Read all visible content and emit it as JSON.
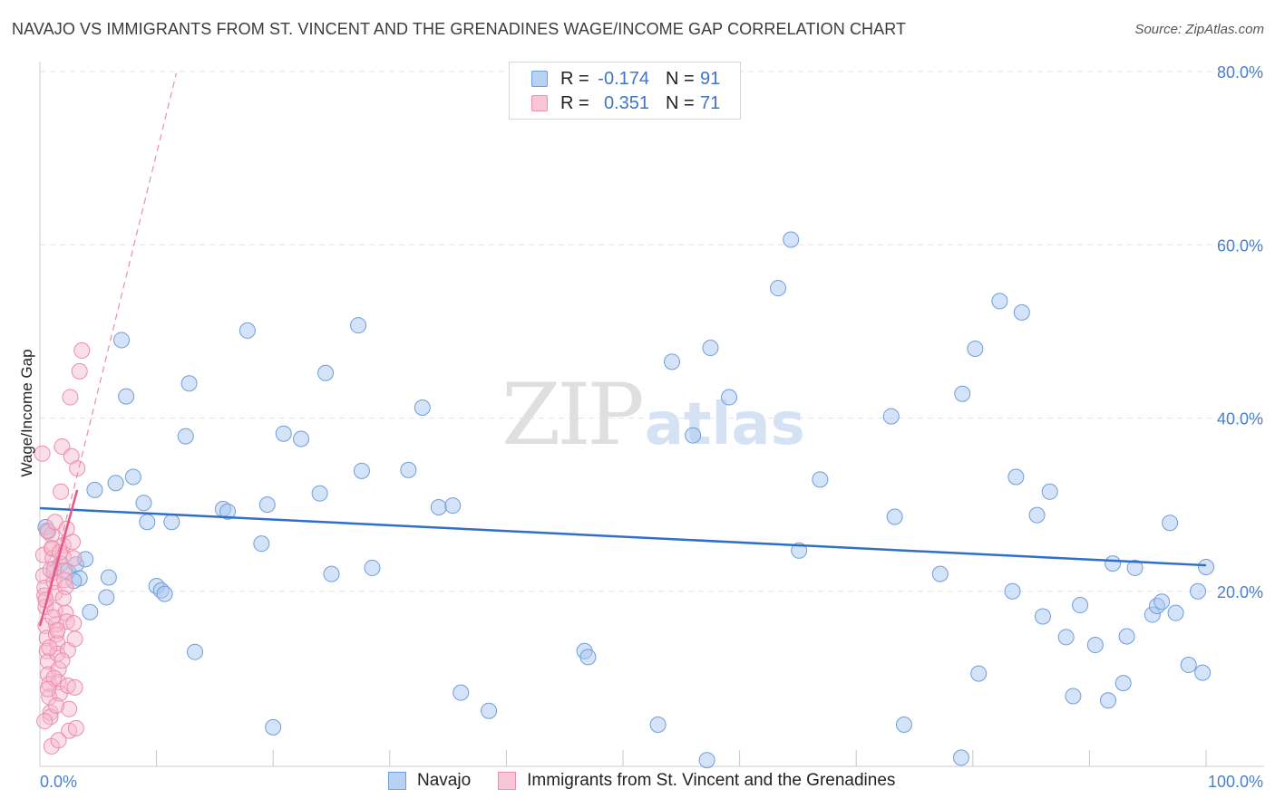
{
  "title": "NAVAJO VS IMMIGRANTS FROM ST. VINCENT AND THE GRENADINES WAGE/INCOME GAP CORRELATION CHART",
  "source": "Source: ZipAtlas.com",
  "watermark": {
    "zip": "ZIP",
    "atlas": "atlas"
  },
  "legend_top": {
    "rows": [
      {
        "r_label": "R =",
        "r_value": "-0.174",
        "n_label": "N =",
        "n_value": "91"
      },
      {
        "r_label": "R =",
        "r_value": "0.351",
        "n_label": "N =",
        "n_value": "71"
      }
    ]
  },
  "legend_bottom": [
    "Navajo",
    "Immigrants from St. Vincent and the Grenadines"
  ],
  "colors": {
    "navajo_fill": "#a9c8f0",
    "navajo_stroke": "#6f9ed9",
    "navajo_line": "#2f6fca",
    "svg_fill": "#f7b8cb",
    "svg_stroke": "#ec8dab",
    "svg_line": "#e8578a",
    "grid": "#e3e3e3",
    "axis": "#cccccc",
    "tick_text": "#4a7fd0"
  },
  "chart_data": {
    "type": "scatter",
    "title": "NAVAJO VS IMMIGRANTS FROM ST. VINCENT AND THE GRENADINES WAGE/INCOME GAP CORRELATION CHART",
    "xlabel": "",
    "ylabel": "Wage/Income Gap",
    "xlim": [
      0,
      100
    ],
    "ylim": [
      0,
      80
    ],
    "x_tick_labels": [
      "0.0%",
      "100.0%"
    ],
    "y_ticks": [
      20,
      40,
      60,
      80
    ],
    "y_tick_labels": [
      "20.0%",
      "40.0%",
      "60.0%",
      "80.0%"
    ],
    "grid": true,
    "series": [
      {
        "name": "Navajo",
        "r": -0.174,
        "n": 91,
        "trend": {
          "x": [
            0,
            100
          ],
          "y": [
            29.6,
            23.0
          ]
        },
        "points": [
          [
            0.5,
            27.4
          ],
          [
            0.7,
            26.9
          ],
          [
            1.2,
            22.6
          ],
          [
            1.8,
            23.2
          ],
          [
            2.4,
            22.3
          ],
          [
            3.1,
            23.1
          ],
          [
            3.4,
            21.5
          ],
          [
            2.9,
            21.2
          ],
          [
            3.9,
            23.7
          ],
          [
            4.3,
            17.6
          ],
          [
            4.7,
            31.7
          ],
          [
            5.7,
            19.3
          ],
          [
            5.9,
            21.6
          ],
          [
            6.5,
            32.5
          ],
          [
            7.0,
            49.0
          ],
          [
            7.4,
            42.5
          ],
          [
            8.0,
            33.2
          ],
          [
            8.9,
            30.2
          ],
          [
            9.2,
            28.0
          ],
          [
            10.0,
            20.6
          ],
          [
            10.4,
            20.1
          ],
          [
            10.7,
            19.7
          ],
          [
            11.3,
            28.0
          ],
          [
            12.5,
            37.9
          ],
          [
            12.8,
            44.0
          ],
          [
            13.3,
            13.0
          ],
          [
            15.7,
            29.5
          ],
          [
            16.1,
            29.2
          ],
          [
            17.8,
            50.1
          ],
          [
            19.0,
            25.5
          ],
          [
            19.5,
            30.0
          ],
          [
            20.0,
            4.3
          ],
          [
            20.9,
            38.2
          ],
          [
            22.4,
            37.6
          ],
          [
            24.0,
            31.3
          ],
          [
            24.5,
            45.2
          ],
          [
            25.0,
            22.0
          ],
          [
            27.3,
            50.7
          ],
          [
            27.6,
            33.9
          ],
          [
            28.5,
            22.7
          ],
          [
            31.6,
            34.0
          ],
          [
            32.8,
            41.2
          ],
          [
            34.2,
            29.7
          ],
          [
            35.4,
            29.9
          ],
          [
            36.1,
            8.3
          ],
          [
            38.5,
            6.2
          ],
          [
            46.7,
            13.1
          ],
          [
            47.0,
            12.4
          ],
          [
            53.0,
            4.6
          ],
          [
            54.2,
            46.5
          ],
          [
            56.0,
            38.0
          ],
          [
            57.2,
            0.5
          ],
          [
            57.5,
            48.1
          ],
          [
            59.1,
            42.4
          ],
          [
            63.3,
            55.0
          ],
          [
            64.4,
            60.6
          ],
          [
            65.1,
            24.7
          ],
          [
            66.9,
            32.9
          ],
          [
            73.0,
            40.2
          ],
          [
            73.3,
            28.6
          ],
          [
            74.1,
            4.6
          ],
          [
            77.2,
            22.0
          ],
          [
            79.0,
            0.8
          ],
          [
            79.1,
            42.8
          ],
          [
            80.2,
            48.0
          ],
          [
            80.5,
            10.5
          ],
          [
            82.3,
            53.5
          ],
          [
            83.4,
            20.0
          ],
          [
            83.7,
            33.2
          ],
          [
            84.2,
            52.2
          ],
          [
            85.5,
            28.8
          ],
          [
            86.0,
            17.1
          ],
          [
            86.6,
            31.5
          ],
          [
            88.0,
            14.7
          ],
          [
            88.6,
            7.9
          ],
          [
            89.2,
            18.4
          ],
          [
            90.5,
            13.8
          ],
          [
            91.6,
            7.4
          ],
          [
            92.0,
            23.2
          ],
          [
            92.9,
            9.4
          ],
          [
            93.2,
            14.8
          ],
          [
            93.9,
            22.7
          ],
          [
            95.4,
            17.3
          ],
          [
            95.8,
            18.3
          ],
          [
            96.2,
            18.8
          ],
          [
            96.9,
            27.9
          ],
          [
            97.4,
            17.5
          ],
          [
            98.5,
            11.5
          ],
          [
            99.3,
            20.0
          ],
          [
            99.7,
            10.6
          ],
          [
            100.0,
            22.8
          ]
        ]
      },
      {
        "name": "Immigrants from St. Vincent and the Grenadines",
        "r": 0.351,
        "n": 71,
        "trend": {
          "x": [
            0,
            3.2
          ],
          "y": [
            16.0,
            31.7
          ]
        },
        "trend_extension": {
          "x": [
            0,
            11.7
          ],
          "y": [
            16.0,
            79.8
          ]
        },
        "points": [
          [
            0.2,
            35.9
          ],
          [
            0.3,
            24.2
          ],
          [
            0.3,
            21.8
          ],
          [
            0.4,
            20.4
          ],
          [
            0.4,
            19.5
          ],
          [
            0.5,
            18.2
          ],
          [
            0.5,
            16.0
          ],
          [
            0.6,
            14.6
          ],
          [
            0.6,
            13.1
          ],
          [
            0.7,
            11.9
          ],
          [
            0.7,
            10.4
          ],
          [
            0.8,
            9.3
          ],
          [
            0.8,
            7.8
          ],
          [
            0.9,
            6.0
          ],
          [
            0.9,
            5.5
          ],
          [
            1.0,
            2.1
          ],
          [
            1.0,
            26.5
          ],
          [
            1.1,
            24.9
          ],
          [
            1.1,
            23.8
          ],
          [
            1.2,
            22.2
          ],
          [
            1.2,
            21.1
          ],
          [
            1.3,
            19.8
          ],
          [
            1.3,
            17.8
          ],
          [
            1.4,
            16.2
          ],
          [
            1.4,
            15.0
          ],
          [
            1.5,
            14.0
          ],
          [
            1.5,
            12.8
          ],
          [
            1.6,
            11.0
          ],
          [
            1.6,
            9.5
          ],
          [
            1.7,
            8.2
          ],
          [
            1.8,
            31.5
          ],
          [
            1.9,
            36.7
          ],
          [
            2.0,
            25.3
          ],
          [
            2.0,
            24.0
          ],
          [
            2.1,
            22.4
          ],
          [
            2.1,
            21.3
          ],
          [
            2.2,
            20.5
          ],
          [
            2.2,
            17.5
          ],
          [
            2.3,
            16.5
          ],
          [
            2.4,
            13.2
          ],
          [
            2.4,
            9.1
          ],
          [
            2.5,
            6.4
          ],
          [
            2.5,
            3.9
          ],
          [
            2.6,
            42.4
          ],
          [
            2.7,
            35.6
          ],
          [
            2.8,
            25.7
          ],
          [
            2.9,
            23.8
          ],
          [
            2.9,
            16.3
          ],
          [
            3.0,
            14.5
          ],
          [
            3.0,
            8.9
          ],
          [
            3.1,
            4.2
          ],
          [
            3.2,
            34.2
          ],
          [
            3.4,
            45.4
          ],
          [
            3.6,
            47.8
          ],
          [
            0.6,
            27.0
          ],
          [
            1.0,
            25.0
          ],
          [
            1.3,
            28.0
          ],
          [
            0.9,
            22.5
          ],
          [
            1.7,
            24.5
          ],
          [
            0.5,
            19.0
          ],
          [
            1.1,
            17.0
          ],
          [
            1.5,
            15.5
          ],
          [
            0.8,
            13.5
          ],
          [
            1.9,
            12.0
          ],
          [
            1.2,
            10.0
          ],
          [
            0.7,
            8.7
          ],
          [
            1.4,
            6.8
          ],
          [
            0.4,
            5.0
          ],
          [
            1.6,
            2.8
          ],
          [
            2.0,
            19.2
          ],
          [
            2.3,
            27.2
          ]
        ]
      }
    ]
  }
}
